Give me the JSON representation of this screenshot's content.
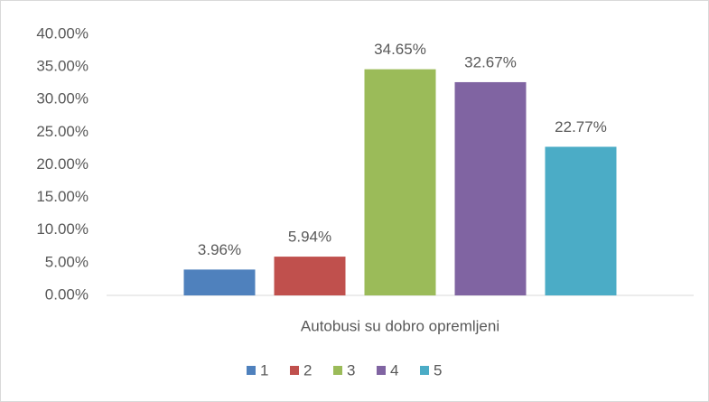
{
  "chart_data": {
    "type": "bar",
    "categories": [
      "Autobusi su dobro opremljeni"
    ],
    "series": [
      {
        "name": "1",
        "color": "#4f81bd",
        "values": [
          3.96
        ],
        "value_labels": [
          "3.96%"
        ]
      },
      {
        "name": "2",
        "color": "#c0504d",
        "values": [
          5.94
        ],
        "value_labels": [
          "5.94%"
        ]
      },
      {
        "name": "3",
        "color": "#9bbb59",
        "values": [
          34.65
        ],
        "value_labels": [
          "34.65%"
        ]
      },
      {
        "name": "4",
        "color": "#8064a2",
        "values": [
          32.67
        ],
        "value_labels": [
          "32.67%"
        ]
      },
      {
        "name": "5",
        "color": "#4bacc6",
        "values": [
          22.77
        ],
        "value_labels": [
          "22.77%"
        ]
      }
    ],
    "ylim": [
      0,
      40
    ],
    "yticks": [
      {
        "value": 0,
        "label": "0.00%"
      },
      {
        "value": 5,
        "label": "5.00%"
      },
      {
        "value": 10,
        "label": "10.00%"
      },
      {
        "value": 15,
        "label": "15.00%"
      },
      {
        "value": 20,
        "label": "20.00%"
      },
      {
        "value": 25,
        "label": "25.00%"
      },
      {
        "value": 30,
        "label": "30.00%"
      },
      {
        "value": 35,
        "label": "35.00%"
      },
      {
        "value": 40,
        "label": "40.00%"
      }
    ],
    "grid": false,
    "legend": "bottom"
  }
}
